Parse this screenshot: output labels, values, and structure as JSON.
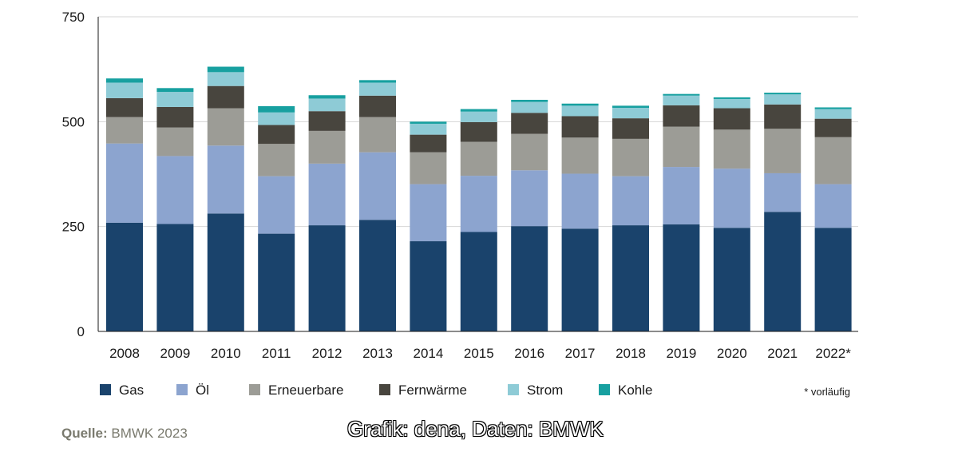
{
  "chart_data": {
    "type": "bar",
    "stacked": true,
    "categories": [
      "2008",
      "2009",
      "2010",
      "2011",
      "2012",
      "2013",
      "2014",
      "2015",
      "2016",
      "2017",
      "2018",
      "2019",
      "2020",
      "2021",
      "2022*"
    ],
    "series": [
      {
        "name": "Gas",
        "color": "#1a436c",
        "values": [
          259,
          256,
          281,
          233,
          253,
          266,
          215,
          237,
          251,
          245,
          253,
          255,
          247,
          285,
          247
        ]
      },
      {
        "name": "Öl",
        "color": "#8ca4cf",
        "values": [
          189,
          162,
          162,
          137,
          147,
          161,
          136,
          134,
          133,
          131,
          117,
          137,
          141,
          92,
          104
        ]
      },
      {
        "name": "Erneuerbare",
        "color": "#9c9c96",
        "values": [
          63,
          68,
          89,
          77,
          78,
          84,
          76,
          81,
          87,
          86,
          89,
          96,
          93,
          106,
          112
        ]
      },
      {
        "name": "Fernwärme",
        "color": "#48453e",
        "values": [
          45,
          49,
          53,
          45,
          47,
          51,
          42,
          47,
          50,
          51,
          49,
          51,
          51,
          58,
          44
        ]
      },
      {
        "name": "Strom",
        "color": "#8ecbd6",
        "values": [
          37,
          36,
          33,
          30,
          30,
          31,
          26,
          25,
          26,
          25,
          25,
          23,
          22,
          24,
          23
        ]
      },
      {
        "name": "Kohle",
        "color": "#17a0a0",
        "values": [
          10,
          9,
          13,
          15,
          8,
          6,
          5,
          6,
          5,
          5,
          5,
          4,
          4,
          4,
          4
        ]
      }
    ],
    "ylim": [
      0,
      750
    ],
    "yticks": [
      0,
      250,
      500,
      750
    ],
    "grid": true,
    "legend_position": "bottom",
    "note": "* vorläufig"
  },
  "footer": {
    "source_label": "Quelle:",
    "source_value": "BMWK 2023",
    "credit": "Grafik: dena, Daten: BMWK"
  }
}
